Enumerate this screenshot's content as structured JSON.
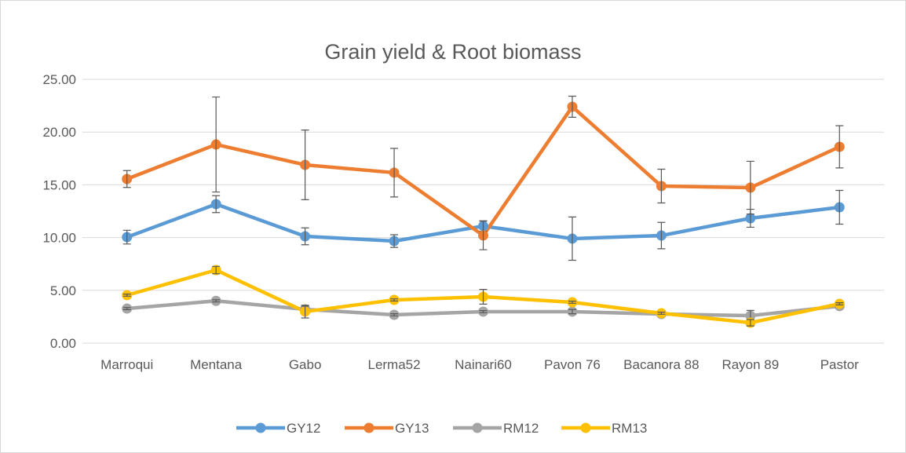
{
  "chart_data": {
    "type": "line",
    "title": "Grain yield & Root biomass",
    "categories": [
      "Marroqui",
      "Mentana",
      "Gabo",
      "Lerma52",
      "Nainari60",
      "Pavon 76",
      "Bacanora 88",
      "Rayon 89",
      "Pastor"
    ],
    "ylim": [
      0,
      25
    ],
    "yticks": [
      {
        "value": 0,
        "label": "0.00"
      },
      {
        "value": 5,
        "label": "5.00"
      },
      {
        "value": 10,
        "label": "10.00"
      },
      {
        "value": 15,
        "label": "15.00"
      },
      {
        "value": 20,
        "label": "20.00"
      },
      {
        "value": 25,
        "label": "25.00"
      }
    ],
    "grid": true,
    "legend": "bottom",
    "series": [
      {
        "name": "GY12",
        "color": "#5b9bd5",
        "values": [
          10.04,
          13.17,
          10.12,
          9.67,
          11.09,
          9.9,
          10.19,
          11.83,
          12.87
        ],
        "errors": [
          0.65,
          0.8,
          0.8,
          0.6,
          0.5,
          2.05,
          1.25,
          0.85,
          1.6
        ]
      },
      {
        "name": "GY13",
        "color": "#ed7d31",
        "values": [
          15.55,
          18.82,
          16.89,
          16.15,
          10.2,
          22.4,
          14.88,
          14.73,
          18.6
        ],
        "errors": [
          0.8,
          4.5,
          3.3,
          2.3,
          1.35,
          1.0,
          1.6,
          2.5,
          2.0
        ]
      },
      {
        "name": "RM12",
        "color": "#a5a5a5",
        "values": [
          3.27,
          4.0,
          3.2,
          2.68,
          2.98,
          2.98,
          2.75,
          2.6,
          3.5
        ],
        "errors": [
          0.1,
          0.1,
          0.3,
          0.1,
          0.1,
          0.2,
          0.1,
          0.5,
          0.1
        ]
      },
      {
        "name": "RM13",
        "color": "#ffc000",
        "values": [
          4.54,
          6.92,
          2.98,
          4.09,
          4.39,
          3.87,
          2.83,
          1.93,
          3.72
        ],
        "errors": [
          0.1,
          0.35,
          0.6,
          0.1,
          0.7,
          0.1,
          0.1,
          0.3,
          0.1
        ]
      }
    ]
  }
}
